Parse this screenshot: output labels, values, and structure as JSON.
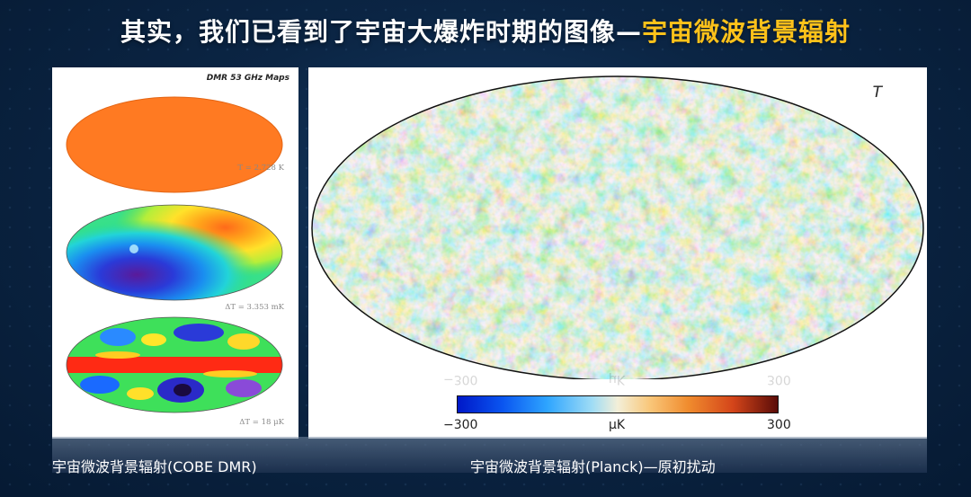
{
  "title": {
    "main": "其实，我们已看到了宇宙大爆炸时期的图像—",
    "highlight": "宇宙微波背景辐射"
  },
  "cobe": {
    "header": "DMR 53 GHz Maps",
    "labels": [
      "T = 2.728 K",
      "ΔT = 3.353 mK",
      "ΔT = 18 μK"
    ],
    "caption": "宇宙微波背景辐射(COBE DMR)"
  },
  "planck": {
    "field_label": "T",
    "colorbar": {
      "min": "−300",
      "max": "300",
      "unit": "μK"
    },
    "caption": "宇宙微波背景辐射(Planck)—原初扰动"
  },
  "colors": {
    "title_text": "#ffffff",
    "title_highlight": "#ffc21a",
    "background": "#0b2544",
    "dipole_orange": "#ff7a22"
  }
}
